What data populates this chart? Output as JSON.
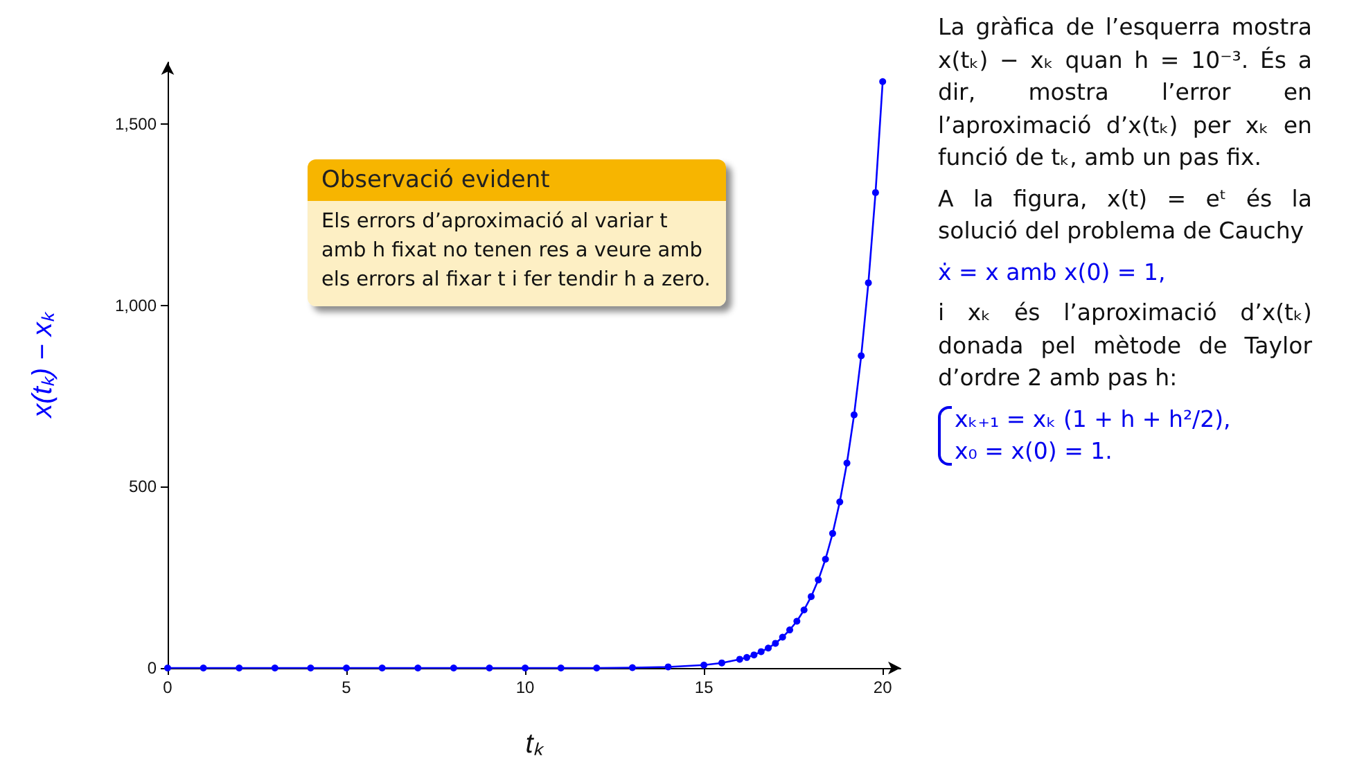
{
  "chart_data": {
    "type": "line",
    "xlabel": "tₖ",
    "ylabel": "x(tₖ) − xₖ",
    "x": [
      0,
      1,
      2,
      3,
      4,
      5,
      6,
      7,
      8,
      9,
      10,
      11,
      12,
      13,
      14,
      15,
      15.5,
      16,
      16.2,
      16.4,
      16.6,
      16.8,
      17,
      17.2,
      17.4,
      17.6,
      17.8,
      18,
      18.2,
      18.4,
      18.6,
      18.8,
      19,
      19.2,
      19.4,
      19.6,
      19.8,
      20
    ],
    "series": [
      {
        "color": "#0000ff",
        "values": [
          0,
          0,
          0,
          0,
          0,
          0,
          0,
          0,
          0,
          0,
          0,
          0,
          0,
          1,
          3,
          8,
          14,
          24,
          29,
          36,
          45,
          55,
          68,
          85,
          105,
          129,
          160,
          197,
          243,
          300,
          371,
          458,
          565,
          698,
          861,
          1062,
          1311,
          1617
        ]
      }
    ],
    "xlim": [
      0,
      20.5
    ],
    "xticks": [
      0,
      5,
      10,
      15,
      20
    ],
    "ylim": [
      0,
      1670
    ],
    "yticks": [
      0,
      500,
      {
        "value": 1000,
        "label": "1,000"
      },
      {
        "value": 1500,
        "label": "1,500"
      }
    ],
    "grid": false,
    "marker": "circle",
    "line_style": "solid",
    "annotations": [
      "Observació evident",
      "Els errors d’aproximació al variar t amb h fixat no tenen res a veure amb els errors al fixar t i fer tendir h a zero.",
      "La gràfica de l’esquerra mostra x(tₖ) − xₖ quan h = 10⁻³. És a dir, mostra l’error en l’aproximació d’x(tₖ) per xₖ en funció de tₖ, amb un pas fix.",
      "A la figura, x(t) = eᵗ és la solució del problema de Cauchy",
      "ẋ = x   amb   x(0) = 1,",
      "i xₖ és l’aproximació d’x(tₖ) donada pel mètode de Taylor d’ordre 2 amb pas h:",
      "xₖ₊₁ = xₖ (1 + h + h²/2),",
      "x₀ = x(0) = 1."
    ]
  }
}
